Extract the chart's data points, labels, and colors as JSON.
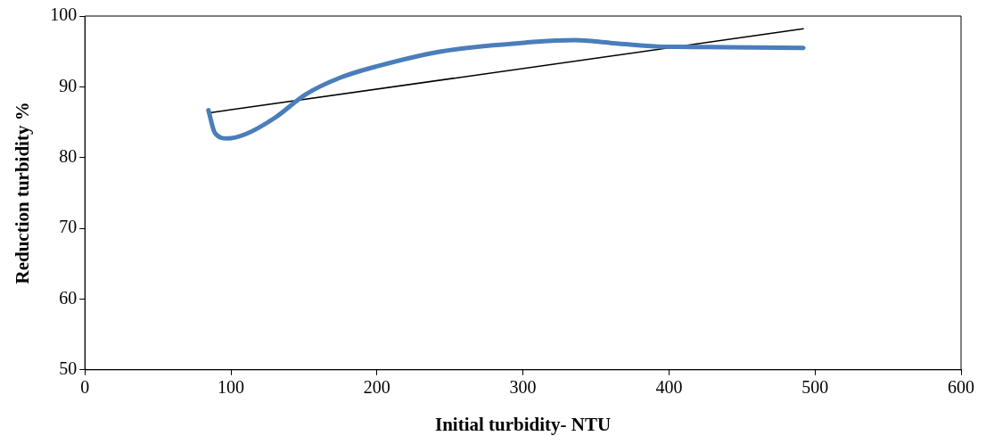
{
  "chart_data": {
    "type": "line",
    "xlabel": "Initial turbidity- NTU",
    "ylabel": "Reduction turbidity %",
    "xlim": [
      0,
      600
    ],
    "xticks": [
      0,
      100,
      200,
      300,
      400,
      500,
      600
    ],
    "ylim": [
      50,
      100
    ],
    "yticks": [
      50,
      60,
      70,
      80,
      90,
      100
    ],
    "grid": false,
    "legend": false,
    "marker": "none",
    "series": [
      {
        "color": "#4a7ebb",
        "x": [
          84.6,
          89,
          97.5,
          110,
          130,
          151,
          175,
          200,
          244,
          305,
          336,
          360,
          392,
          440,
          492
        ],
        "values": [
          86.7,
          83.5,
          82.7,
          83.3,
          85.6,
          88.9,
          91.3,
          92.9,
          95.0,
          96.3,
          96.6,
          96.2,
          95.7,
          95.6,
          95.5
        ]
      },
      {
        "type": "line",
        "color": "#000000",
        "x": [
          84.6,
          492
        ],
        "values": [
          86.3,
          98.2
        ]
      }
    ]
  }
}
